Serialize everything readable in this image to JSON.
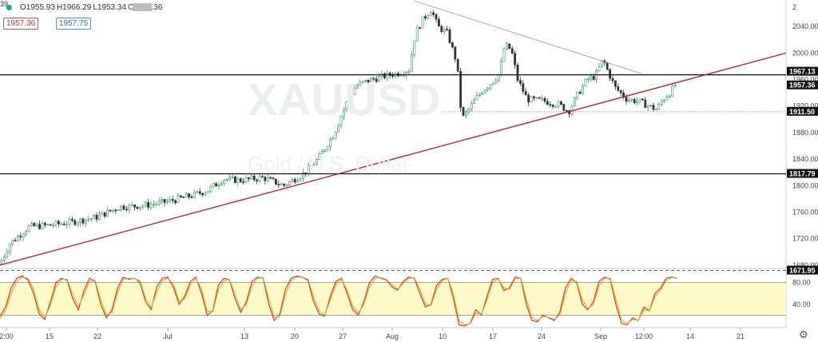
{
  "header": {
    "open_label": "O1955.93",
    "high_label": "H1966.29",
    "low_label": "L1953.34",
    "close_label": "C1957.36",
    "bid": "1957.36",
    "spread": "39",
    "ask": "1957.75"
  },
  "watermark": {
    "symbol": "XAUUSD",
    "subtitle": "Gold / U.S. Dollar"
  },
  "chart_data": [
    {
      "type": "candlestick",
      "title": "",
      "x_ticks": [
        "2:00",
        "15",
        "22",
        "Jul",
        "13",
        "20",
        "27",
        "Aug",
        "10",
        "17",
        "24",
        "Sep",
        "12:00",
        "14",
        "21"
      ],
      "y_ticks": [
        1680,
        1720,
        1760,
        1800,
        1840,
        1880,
        1920,
        1960,
        2000,
        2040
      ],
      "y_top_tick": "2",
      "ylim": [
        1675,
        2080
      ],
      "close_path": [
        [
          0,
          1682
        ],
        [
          12,
          1712
        ],
        [
          36,
          1738
        ],
        [
          60,
          1740
        ],
        [
          90,
          1745
        ],
        [
          120,
          1752
        ],
        [
          150,
          1768
        ],
        [
          180,
          1770
        ],
        [
          210,
          1776
        ],
        [
          240,
          1785
        ],
        [
          260,
          1793
        ],
        [
          280,
          1810
        ],
        [
          300,
          1808
        ],
        [
          330,
          1812
        ],
        [
          355,
          1800
        ],
        [
          380,
          1818
        ],
        [
          398,
          1840
        ],
        [
          418,
          1878
        ],
        [
          432,
          1920
        ],
        [
          445,
          1950
        ],
        [
          460,
          1958
        ],
        [
          480,
          1965
        ],
        [
          500,
          1970
        ],
        [
          512,
          1975
        ],
        [
          520,
          2030
        ],
        [
          530,
          2052
        ],
        [
          540,
          2066
        ],
        [
          548,
          2040
        ],
        [
          560,
          2030
        ],
        [
          572,
          1985
        ],
        [
          578,
          1900
        ],
        [
          584,
          1910
        ],
        [
          595,
          1930
        ],
        [
          605,
          1945
        ],
        [
          615,
          1955
        ],
        [
          625,
          1968
        ],
        [
          632,
          2012
        ],
        [
          640,
          2005
        ],
        [
          648,
          1960
        ],
        [
          660,
          1930
        ],
        [
          680,
          1928
        ],
        [
          700,
          1922
        ],
        [
          712,
          1912
        ],
        [
          722,
          1935
        ],
        [
          735,
          1960
        ],
        [
          745,
          1965
        ],
        [
          755,
          1990
        ],
        [
          760,
          1975
        ],
        [
          770,
          1948
        ],
        [
          785,
          1930
        ],
        [
          800,
          1927
        ],
        [
          812,
          1920
        ],
        [
          822,
          1915
        ],
        [
          830,
          1930
        ],
        [
          840,
          1942
        ],
        [
          848,
          1957
        ]
      ],
      "horizontal_levels": [
        {
          "value": 1967.13,
          "label": "1967.13",
          "style": "solid"
        },
        {
          "value": 1957.36,
          "label": "1957.36",
          "style": "current"
        },
        {
          "value": 1911.5,
          "label": "1911.50",
          "style": "dotted"
        },
        {
          "value": 1817.79,
          "label": "1817.79",
          "style": "solid"
        },
        {
          "value": 1671.95,
          "label": "1671.95",
          "style": "dashed"
        }
      ],
      "colors": {
        "up": "#2e9b55",
        "down": "#333333",
        "trendline": "#b7272b",
        "level": "#111111"
      }
    },
    {
      "type": "line",
      "title": "",
      "ylim": [
        0,
        100
      ],
      "y_ticks": [
        40,
        80
      ],
      "band": [
        20,
        80
      ],
      "band_color": "#fdf9c8",
      "series": [
        {
          "color": "#c0392b",
          "values": [
            18,
            35,
            70,
            88,
            92,
            85,
            60,
            22,
            12,
            45,
            80,
            88,
            84,
            50,
            30,
            65,
            88,
            82,
            40,
            15,
            30,
            70,
            90,
            86,
            88,
            80,
            45,
            30,
            72,
            88,
            90,
            70,
            40,
            55,
            82,
            90,
            60,
            20,
            28,
            75,
            88,
            85,
            50,
            25,
            45,
            82,
            90,
            88,
            40,
            10,
            22,
            68,
            88,
            92,
            90,
            84,
            45,
            22,
            18,
            55,
            82,
            88,
            60,
            30,
            20,
            45,
            80,
            92,
            88,
            85,
            72,
            66,
            82,
            90,
            88,
            60,
            35,
            40,
            75,
            86,
            88,
            50,
            2,
            0,
            5,
            30,
            20,
            55,
            86,
            88,
            65,
            70,
            90,
            88,
            40,
            10,
            8,
            20,
            15,
            10,
            25,
            70,
            88,
            80,
            40,
            30,
            45,
            82,
            90,
            86,
            40,
            5,
            2,
            15,
            10,
            35,
            28,
            60,
            70,
            88,
            90,
            88
          ]
        },
        {
          "color": "#f0a020",
          "values": [
            14,
            28,
            60,
            82,
            90,
            88,
            68,
            30,
            15,
            38,
            72,
            86,
            86,
            58,
            36,
            58,
            82,
            84,
            48,
            20,
            25,
            62,
            86,
            88,
            87,
            83,
            52,
            34,
            62,
            84,
            88,
            76,
            46,
            50,
            76,
            88,
            68,
            28,
            26,
            66,
            84,
            86,
            58,
            30,
            40,
            74,
            88,
            89,
            50,
            16,
            18,
            58,
            84,
            90,
            90,
            86,
            54,
            28,
            20,
            48,
            76,
            86,
            66,
            36,
            24,
            40,
            72,
            88,
            89,
            86,
            76,
            68,
            78,
            88,
            89,
            68,
            40,
            38,
            68,
            84,
            88,
            58,
            10,
            2,
            4,
            24,
            22,
            48,
            80,
            87,
            70,
            68,
            86,
            89,
            50,
            16,
            10,
            18,
            16,
            12,
            20,
            60,
            84,
            82,
            48,
            32,
            40,
            74,
            88,
            88,
            50,
            12,
            4,
            12,
            11,
            30,
            28,
            54,
            66,
            84,
            89,
            89
          ]
        }
      ]
    }
  ]
}
